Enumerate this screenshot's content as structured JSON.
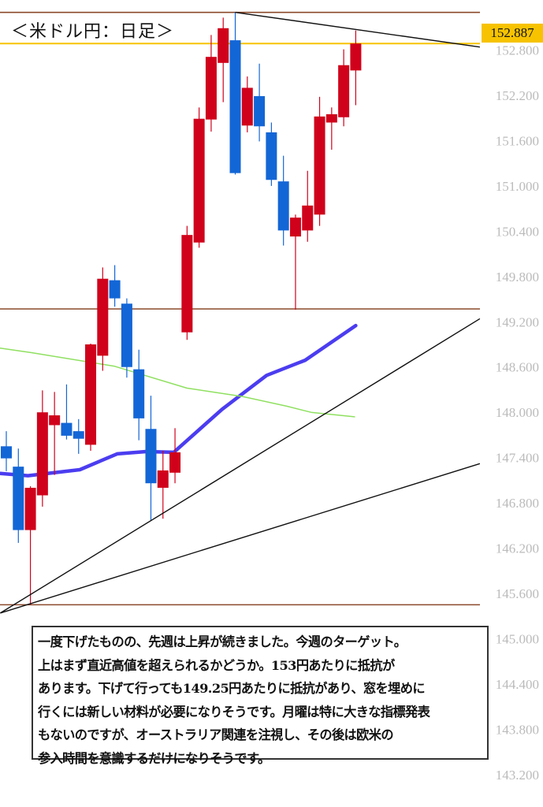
{
  "title": "＜米ドル円：日足＞",
  "note_lines": [
    "一度下げたものの、先週は上昇が続きました。今週のターゲット。",
    "上はまず直近高値を超えられるかどうか。153円あたりに抵抗が",
    "あります。下げて行っても149.25円あたりに抵抗があり、窓を埋めに",
    "行くには新しい材料が必要になりそうです。月曜は特に大きな指標発表",
    "もないのですが、オーストラリア関連を注視し、その後は欧米の",
    "参入時間を意識するだけになりそうです。"
  ],
  "current_price_label": "152.887",
  "colors": {
    "up": "#d0021b",
    "down": "#1366d6",
    "ma_fast": "#4b3df0",
    "ma_slow": "#8fe060",
    "hline": "#8b4a2b",
    "price_line": "#f7c300",
    "trend": "#111111",
    "axis_text": "#bbbbbb"
  },
  "chart_data": {
    "type": "candlestick",
    "title": "＜米ドル円：日足＞",
    "y_ticks": [
      "152.800",
      "152.200",
      "151.600",
      "151.000",
      "150.400",
      "149.800",
      "149.200",
      "148.600",
      "148.000",
      "147.400",
      "146.800",
      "146.200",
      "145.600",
      "145.000",
      "144.400",
      "143.800",
      "143.200"
    ],
    "ylim": [
      143.0,
      153.45
    ],
    "candles": [
      {
        "o": 147.55,
        "h": 147.75,
        "l": 147.22,
        "c": 147.39
      },
      {
        "o": 147.28,
        "h": 147.52,
        "l": 146.27,
        "c": 146.44
      },
      {
        "o": 146.44,
        "h": 147.02,
        "l": 145.45,
        "c": 147.0
      },
      {
        "o": 146.9,
        "h": 148.29,
        "l": 146.75,
        "c": 148.0
      },
      {
        "o": 147.83,
        "h": 148.27,
        "l": 147.17,
        "c": 147.96
      },
      {
        "o": 147.86,
        "h": 148.37,
        "l": 147.64,
        "c": 147.69
      },
      {
        "o": 147.75,
        "h": 147.91,
        "l": 147.45,
        "c": 147.65
      },
      {
        "o": 147.57,
        "h": 148.91,
        "l": 147.49,
        "c": 148.9
      },
      {
        "o": 148.75,
        "h": 149.92,
        "l": 148.55,
        "c": 149.77
      },
      {
        "o": 149.75,
        "h": 149.95,
        "l": 149.4,
        "c": 149.51
      },
      {
        "o": 149.44,
        "h": 149.51,
        "l": 148.46,
        "c": 148.6
      },
      {
        "o": 148.57,
        "h": 148.83,
        "l": 147.63,
        "c": 147.92
      },
      {
        "o": 147.78,
        "h": 148.22,
        "l": 146.57,
        "c": 147.06
      },
      {
        "o": 147.0,
        "h": 147.49,
        "l": 146.59,
        "c": 147.23
      },
      {
        "o": 147.2,
        "h": 147.79,
        "l": 147.06,
        "c": 147.47
      },
      {
        "o": 149.06,
        "h": 150.47,
        "l": 148.96,
        "c": 150.35
      },
      {
        "o": 150.25,
        "h": 152.04,
        "l": 150.18,
        "c": 151.89
      },
      {
        "o": 151.88,
        "h": 153.0,
        "l": 151.72,
        "c": 152.71
      },
      {
        "o": 152.63,
        "h": 153.23,
        "l": 152.11,
        "c": 153.09
      },
      {
        "o": 152.93,
        "h": 153.3,
        "l": 151.15,
        "c": 151.17
      },
      {
        "o": 151.8,
        "h": 152.45,
        "l": 151.71,
        "c": 152.3
      },
      {
        "o": 152.19,
        "h": 152.62,
        "l": 151.59,
        "c": 151.79
      },
      {
        "o": 151.71,
        "h": 151.84,
        "l": 151.0,
        "c": 151.08
      },
      {
        "o": 151.06,
        "h": 151.4,
        "l": 150.21,
        "c": 150.41
      },
      {
        "o": 150.33,
        "h": 150.62,
        "l": 149.36,
        "c": 150.58
      },
      {
        "o": 150.41,
        "h": 151.2,
        "l": 150.26,
        "c": 150.74
      },
      {
        "o": 150.62,
        "h": 152.18,
        "l": 150.47,
        "c": 151.92
      },
      {
        "o": 151.84,
        "h": 152.04,
        "l": 151.48,
        "c": 151.95
      },
      {
        "o": 151.91,
        "h": 152.81,
        "l": 151.79,
        "c": 152.6
      },
      {
        "o": 152.53,
        "h": 153.06,
        "l": 152.07,
        "c": 152.887
      }
    ],
    "moving_averages": [
      {
        "key": "ma_fast",
        "points": [
          [
            -0.5,
            147.19
          ],
          [
            1.8,
            147.16
          ],
          [
            6.1,
            147.24
          ],
          [
            9.2,
            147.45
          ],
          [
            11.6,
            147.48
          ],
          [
            13.9,
            147.47
          ],
          [
            17.9,
            148.04
          ],
          [
            21.6,
            148.49
          ],
          [
            24.8,
            148.69
          ],
          [
            29.0,
            149.15
          ]
        ]
      },
      {
        "key": "ma_slow",
        "points": [
          [
            -0.5,
            148.85
          ],
          [
            2.1,
            148.79
          ],
          [
            9.0,
            148.61
          ],
          [
            15.0,
            148.32
          ],
          [
            19.6,
            148.21
          ],
          [
            23.3,
            148.08
          ],
          [
            25.3,
            148.0
          ],
          [
            28.9,
            147.94
          ]
        ]
      }
    ],
    "horizontal_lines": [
      {
        "price": 153.3,
        "color": "hline"
      },
      {
        "price": 152.887,
        "color": "price_line"
      },
      {
        "price": 149.37,
        "color": "hline"
      },
      {
        "price": 145.45,
        "color": "hline"
      }
    ],
    "trend_lines": [
      {
        "from": [
          19.0,
          153.3
        ],
        "to": [
          39.3,
          152.84
        ]
      },
      {
        "from": [
          -0.5,
          145.34
        ],
        "to": [
          39.3,
          149.24
        ]
      },
      {
        "from": [
          -0.5,
          145.34
        ],
        "to": [
          39.3,
          147.32
        ]
      }
    ]
  }
}
